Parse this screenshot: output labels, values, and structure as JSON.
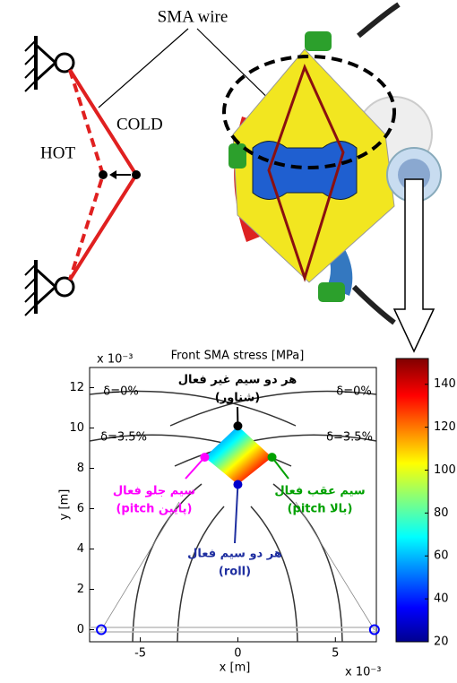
{
  "diagram": {
    "wire_label": "SMA wire",
    "cold_label": "COLD",
    "hot_label": "HOT"
  },
  "chart_data": {
    "type": "scatter",
    "title": "Front SMA stress [MPa]",
    "x_label": "x [m]",
    "y_label": "y [m]",
    "x_multiplier": "x 10⁻³",
    "y_multiplier": "x 10⁻³",
    "xlim": [
      -7.6,
      7.1
    ],
    "ylim": [
      -0.6,
      13
    ],
    "xticks": [
      -5,
      0,
      5
    ],
    "yticks": [
      0,
      2,
      4,
      6,
      8,
      10,
      12
    ],
    "x": [
      0,
      -1.7,
      1.75,
      0,
      -7,
      7
    ],
    "values": [
      10.1,
      8.55,
      8.55,
      7.2,
      0,
      0
    ],
    "colors": [
      "#000000",
      "#ff00ff",
      "#00a000",
      "#0000cc",
      "#0000ff",
      "#0000ff"
    ],
    "annotations": [
      {
        "lines": [
          "هر دو سیم غیر فعال",
          "(شناور)"
        ],
        "color": "#000000"
      },
      {
        "lines": [
          "سیم جلو فعال",
          "(pitch پایین)"
        ],
        "color": "#ff00ff"
      },
      {
        "lines": [
          "سیم عقب فعال",
          "(pitch بالا)"
        ],
        "color": "#00a000"
      },
      {
        "lines": [
          "هر دو سیم فعال",
          "(roll)"
        ],
        "color": "#1f2fa0"
      }
    ],
    "curve_labels": [
      "δ=0%",
      "δ=0%",
      "δ=3.5%",
      "δ=3.5%"
    ],
    "colorbar": {
      "lim": [
        20,
        152
      ],
      "ticks": [
        20,
        40,
        60,
        80,
        100,
        120,
        140
      ]
    }
  }
}
